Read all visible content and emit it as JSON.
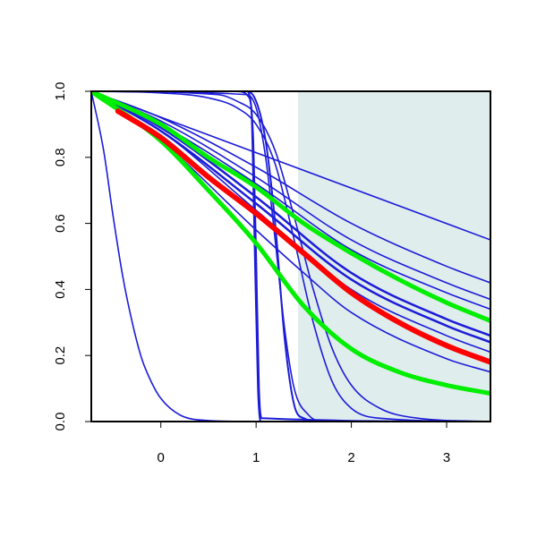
{
  "chart_data": {
    "type": "line",
    "xlim": [
      -0.73,
      3.46
    ],
    "ylim": [
      0,
      1
    ],
    "xticks": [
      0,
      1,
      2,
      3
    ],
    "yticks": [
      {
        "value": 0,
        "label": "0.0"
      },
      {
        "value": 0.2,
        "label": "0.2"
      },
      {
        "value": 0.4,
        "label": "0.4"
      },
      {
        "value": 0.6,
        "label": "0.6"
      },
      {
        "value": 0.8,
        "label": "0.8"
      },
      {
        "value": 1,
        "label": "1.0"
      }
    ],
    "shade": {
      "xlim": [
        1.44,
        3.46
      ],
      "color": "#e0eded"
    },
    "series": [
      {
        "color": "#1c1cd8",
        "line_width": 1.6,
        "x": [
          -0.73,
          3.46
        ],
        "values": [
          1,
          0.55
        ]
      },
      {
        "color": "#1c1cd8",
        "line_width": 1.6,
        "x": [
          -0.73,
          0,
          1,
          2,
          3,
          3.46
        ],
        "values": [
          1,
          0.92,
          0.77,
          0.6,
          0.47,
          0.42
        ]
      },
      {
        "color": "#1c1cd8",
        "line_width": 1.6,
        "x": [
          -0.73,
          0,
          1,
          2,
          3,
          3.46
        ],
        "values": [
          1,
          0.91,
          0.74,
          0.55,
          0.42,
          0.37
        ]
      },
      {
        "color": "#1c1cd8",
        "line_width": 1.6,
        "x": [
          -0.73,
          0,
          1,
          2,
          3,
          3.46
        ],
        "values": [
          1,
          0.9,
          0.72,
          0.52,
          0.39,
          0.34
        ]
      },
      {
        "color": "#1c1cd8",
        "line_width": 2.5,
        "x": [
          -0.73,
          0,
          1,
          2,
          3,
          3.46
        ],
        "values": [
          1,
          0.89,
          0.68,
          0.45,
          0.31,
          0.26
        ]
      },
      {
        "color": "#1c1cd8",
        "line_width": 2.5,
        "x": [
          -0.73,
          0,
          1,
          2,
          3,
          3.46
        ],
        "values": [
          1,
          0.88,
          0.66,
          0.43,
          0.29,
          0.24
        ]
      },
      {
        "color": "#1c1cd8",
        "line_width": 1.6,
        "x": [
          -0.73,
          0,
          1,
          2,
          3,
          3.46
        ],
        "values": [
          1,
          0.88,
          0.64,
          0.4,
          0.26,
          0.21
        ]
      },
      {
        "color": "#1c1cd8",
        "line_width": 1.6,
        "x": [
          -0.73,
          0,
          1,
          1.5,
          2,
          3,
          3.46
        ],
        "values": [
          1,
          0.85,
          0.58,
          0.45,
          0.33,
          0.19,
          0.15
        ]
      },
      {
        "color": "#1c1cd8",
        "line_width": 1.6,
        "x": [
          -0.73,
          -0.6,
          -0.5,
          -0.4,
          -0.3,
          -0.2,
          -0.1,
          0,
          0.2,
          0.5,
          1,
          3.46
        ],
        "values": [
          1,
          0.82,
          0.62,
          0.44,
          0.3,
          0.19,
          0.12,
          0.07,
          0.02,
          0.003,
          0,
          0
        ]
      },
      {
        "color": "#1c1cd8",
        "line_width": 2,
        "x": [
          -0.73,
          0.8,
          0.93,
          0.97,
          1.0,
          1.03,
          1.06,
          3.46
        ],
        "values": [
          1,
          1,
          0.98,
          0.85,
          0.5,
          0.1,
          0.01,
          0
        ]
      },
      {
        "color": "#1c1cd8",
        "line_width": 2,
        "x": [
          -0.73,
          0.9,
          0.95,
          0.98,
          1.02,
          1.05,
          3.46
        ],
        "values": [
          1,
          1,
          0.95,
          0.6,
          0.1,
          0,
          0
        ]
      },
      {
        "color": "#1c1cd8",
        "line_width": 2,
        "x": [
          -0.73,
          0.9,
          1.0,
          1.1,
          1.2,
          1.3,
          1.4,
          1.5,
          1.7,
          3.46
        ],
        "values": [
          1,
          1,
          0.97,
          0.85,
          0.6,
          0.25,
          0.05,
          0.01,
          0,
          0
        ]
      },
      {
        "color": "#1c1cd8",
        "line_width": 1.6,
        "x": [
          -0.73,
          0.9,
          1.0,
          1.1,
          1.2,
          1.3,
          1.4,
          1.55,
          1.7,
          3.46
        ],
        "values": [
          1,
          0.99,
          0.95,
          0.8,
          0.55,
          0.28,
          0.1,
          0.02,
          0,
          0
        ]
      },
      {
        "color": "#1c1cd8",
        "line_width": 1.6,
        "x": [
          -0.73,
          0.6,
          0.8,
          1.0,
          1.2,
          1.4,
          1.6,
          1.8,
          2.0,
          2.3,
          2.7,
          3.46
        ],
        "values": [
          1,
          0.99,
          0.97,
          0.93,
          0.82,
          0.62,
          0.4,
          0.22,
          0.11,
          0.04,
          0.01,
          0
        ]
      },
      {
        "color": "#1c1cd8",
        "line_width": 1.6,
        "x": [
          -0.73,
          0,
          0.5,
          0.8,
          1.0,
          1.2,
          1.4,
          1.6,
          1.8,
          2.0,
          2.3,
          3.46
        ],
        "values": [
          1,
          0.995,
          0.98,
          0.95,
          0.9,
          0.78,
          0.55,
          0.3,
          0.12,
          0.04,
          0.01,
          0
        ]
      },
      {
        "color": "#00ee00",
        "line_width": 5,
        "x": [
          -0.73,
          0,
          0.5,
          1,
          1.5,
          2,
          2.5,
          3,
          3.46
        ],
        "values": [
          1,
          0.9,
          0.8,
          0.71,
          0.6,
          0.51,
          0.43,
          0.36,
          0.305
        ]
      },
      {
        "color": "#00ee00",
        "line_width": 5,
        "x": [
          -0.73,
          0,
          0.5,
          1,
          1.5,
          2,
          2.5,
          3,
          3.46
        ],
        "values": [
          1,
          0.85,
          0.7,
          0.54,
          0.35,
          0.22,
          0.15,
          0.11,
          0.085
        ]
      },
      {
        "color": "#ff0000",
        "line_width": 6,
        "x": [
          -0.45,
          0,
          0.5,
          1,
          1.5,
          2,
          2.5,
          3,
          3.46
        ],
        "values": [
          0.94,
          0.86,
          0.74,
          0.63,
          0.51,
          0.39,
          0.3,
          0.23,
          0.18
        ]
      }
    ]
  }
}
